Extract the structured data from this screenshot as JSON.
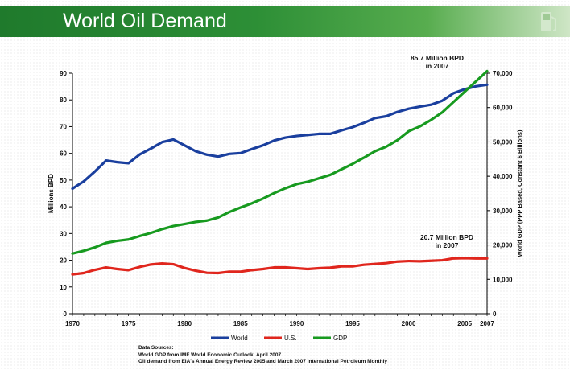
{
  "slide": {
    "title": "World Oil Demand"
  },
  "sources": {
    "heading": "Data Sources:",
    "line1": "World GDP from IMF World Economic Outlook, April 2007",
    "line2": "Oil demand from EIA's Annual Energy Review 2005 and March 2007 International Petroleum Monthly"
  },
  "colors": {
    "world": "#1a3f9e",
    "us": "#e0261d",
    "gdp": "#179a1f",
    "title_bar": "#1f7a2c"
  },
  "chart_data": {
    "type": "line",
    "xlabel": "",
    "ylabel": "Millions BPD",
    "y2label": "World GDP (PPP Based, Constant $ Billions)",
    "xlim": [
      1970,
      2007
    ],
    "ylim": [
      0,
      90
    ],
    "y2lim": [
      0,
      70000
    ],
    "x_ticks": [
      "1970",
      "1975",
      "1980",
      "1985",
      "1990",
      "1995",
      "2000",
      "2005",
      "2007"
    ],
    "y_ticks": [
      "0",
      "10",
      "20",
      "30",
      "40",
      "50",
      "60",
      "70",
      "80",
      "90"
    ],
    "y2_ticks": [
      "0",
      "10,000",
      "20,000",
      "30,000",
      "40,000",
      "50,000",
      "60,000",
      "70,000"
    ],
    "x": [
      1970,
      1971,
      1972,
      1973,
      1974,
      1975,
      1976,
      1977,
      1978,
      1979,
      1980,
      1981,
      1982,
      1983,
      1984,
      1985,
      1986,
      1987,
      1988,
      1989,
      1990,
      1991,
      1992,
      1993,
      1994,
      1995,
      1996,
      1997,
      1998,
      1999,
      2000,
      2001,
      2002,
      2003,
      2004,
      2005,
      2006,
      2007
    ],
    "series": [
      {
        "name": "World",
        "axis": "left",
        "values": [
          46.8,
          49.5,
          53.2,
          57.3,
          56.7,
          56.3,
          59.6,
          61.8,
          64.2,
          65.2,
          63.0,
          60.8,
          59.5,
          58.8,
          59.8,
          60.1,
          61.6,
          63.0,
          64.8,
          65.9,
          66.5,
          66.9,
          67.3,
          67.3,
          68.6,
          69.8,
          71.4,
          73.2,
          73.9,
          75.5,
          76.7,
          77.5,
          78.2,
          79.7,
          82.5,
          84.0,
          85.1,
          85.7
        ]
      },
      {
        "name": "U.S.",
        "axis": "left",
        "values": [
          14.7,
          15.2,
          16.4,
          17.3,
          16.7,
          16.3,
          17.5,
          18.4,
          18.8,
          18.5,
          17.1,
          16.1,
          15.3,
          15.2,
          15.7,
          15.7,
          16.3,
          16.7,
          17.3,
          17.3,
          17.0,
          16.7,
          17.0,
          17.2,
          17.7,
          17.7,
          18.3,
          18.6,
          18.9,
          19.5,
          19.7,
          19.6,
          19.8,
          20.0,
          20.7,
          20.8,
          20.7,
          20.7
        ]
      },
      {
        "name": "GDP",
        "axis": "right",
        "values": [
          17500,
          18300,
          19300,
          20600,
          21200,
          21600,
          22600,
          23500,
          24600,
          25500,
          26100,
          26700,
          27100,
          28000,
          29600,
          30900,
          32100,
          33500,
          35100,
          36500,
          37700,
          38400,
          39400,
          40400,
          42000,
          43600,
          45400,
          47300,
          48600,
          50500,
          53100,
          54500,
          56400,
          58600,
          61600,
          64600,
          67600,
          70600
        ]
      }
    ],
    "annotations": [
      {
        "text": "85.7 Million BPD\nin 2007",
        "x": 2007,
        "y": 85.7
      },
      {
        "text": "20.7 Million BPD\nin 2007",
        "x": 2007,
        "y": 20.7
      }
    ],
    "legend": "bottom",
    "grid": false
  }
}
